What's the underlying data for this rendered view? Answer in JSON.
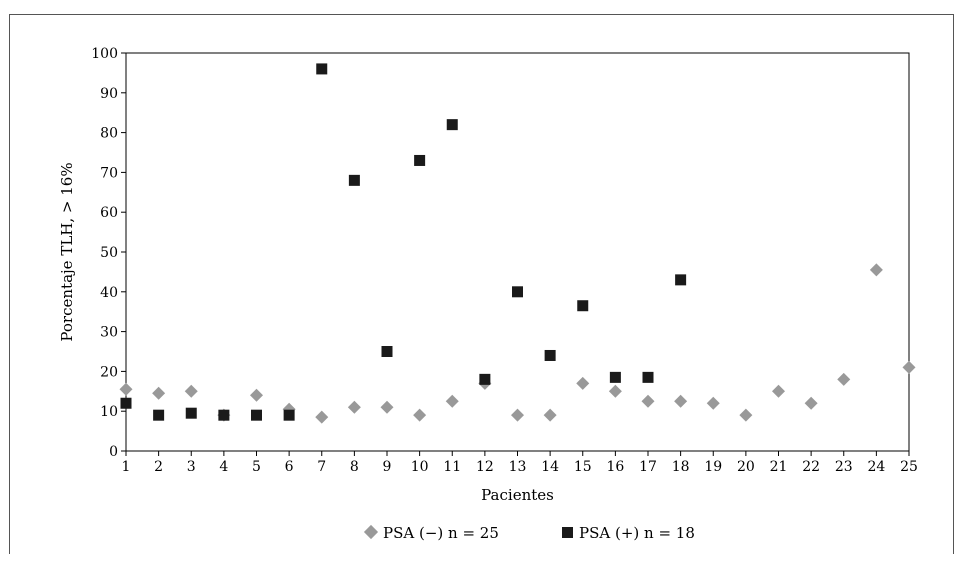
{
  "chart_data": {
    "type": "scatter",
    "title": "",
    "xlabel": "Pacientes",
    "ylabel": "Porcentaje TLH, > 16%",
    "xlim": [
      1,
      25
    ],
    "ylim": [
      0,
      100
    ],
    "x_ticks": [
      1,
      2,
      3,
      4,
      5,
      6,
      7,
      8,
      9,
      10,
      11,
      12,
      13,
      14,
      15,
      16,
      17,
      18,
      19,
      20,
      21,
      22,
      23,
      24,
      25
    ],
    "y_ticks": [
      0,
      10,
      20,
      30,
      40,
      50,
      60,
      70,
      80,
      90,
      100
    ],
    "grid": false,
    "legend_position": "bottom",
    "series": [
      {
        "name": "PSA (−) n = 25",
        "marker": "diamond",
        "color": "#999999",
        "x": [
          1,
          2,
          3,
          4,
          5,
          6,
          7,
          8,
          9,
          10,
          11,
          12,
          13,
          14,
          15,
          16,
          17,
          18,
          19,
          20,
          21,
          22,
          23,
          24,
          25
        ],
        "y": [
          15.5,
          14.5,
          15,
          9,
          14,
          10.5,
          8.5,
          11,
          11,
          9,
          12.5,
          17,
          9,
          9,
          17,
          15,
          12.5,
          12.5,
          12,
          9,
          15,
          12,
          18,
          45.5,
          21
        ]
      },
      {
        "name": "PSA (+) n = 18",
        "marker": "square",
        "color": "#1a1a1a",
        "x": [
          1,
          2,
          3,
          4,
          5,
          6,
          7,
          8,
          9,
          10,
          11,
          12,
          13,
          14,
          15,
          16,
          17,
          18
        ],
        "y": [
          12,
          9,
          9.5,
          9,
          9,
          9,
          96,
          68,
          25,
          73,
          82,
          18,
          40,
          24,
          36.5,
          18.5,
          18.5,
          43
        ]
      }
    ]
  }
}
